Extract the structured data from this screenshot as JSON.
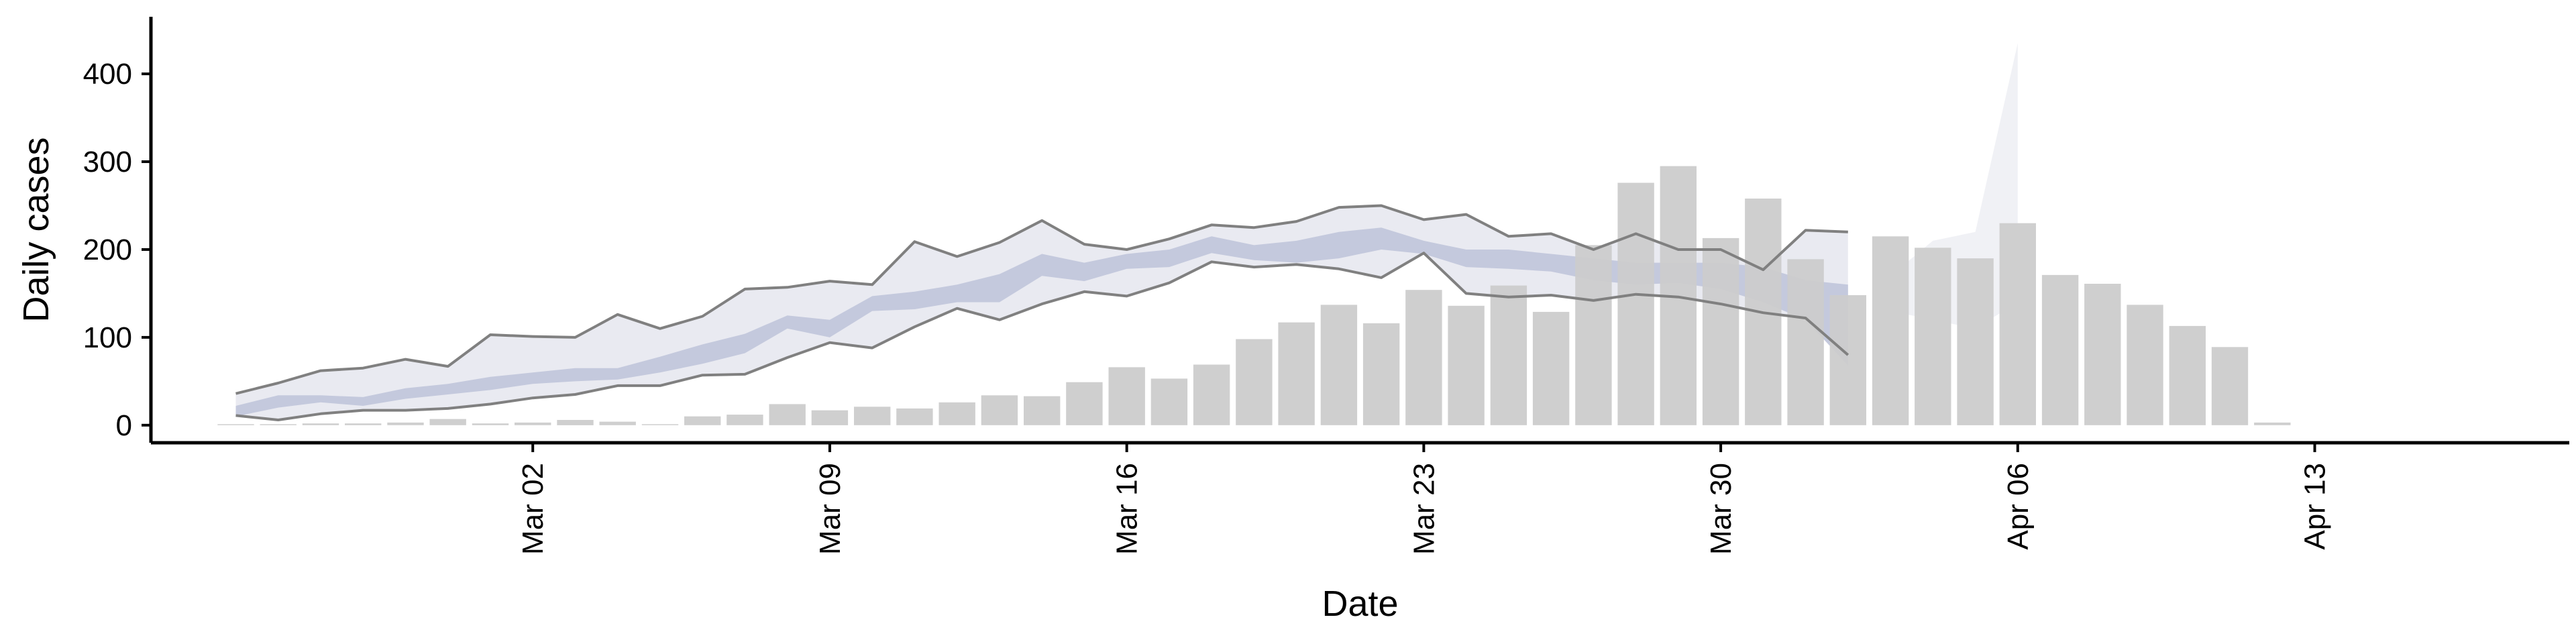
{
  "chart_data": {
    "type": "bar",
    "title": "",
    "xlabel": "Date",
    "ylabel": "Daily cases",
    "ylim": [
      -20,
      465
    ],
    "yticks": [
      0,
      100,
      200,
      300,
      400
    ],
    "xticks": [
      {
        "label": "Mar 02",
        "date": "2020-03-02"
      },
      {
        "label": "Mar 09",
        "date": "2020-03-09"
      },
      {
        "label": "Mar 16",
        "date": "2020-03-16"
      },
      {
        "label": "Mar 23",
        "date": "2020-03-23"
      },
      {
        "label": "Mar 30",
        "date": "2020-03-30"
      },
      {
        "label": "Apr 06",
        "date": "2020-04-06"
      },
      {
        "label": "Apr 13",
        "date": "2020-04-13"
      }
    ],
    "xlim": [
      "2020-02-22",
      "2020-04-19"
    ],
    "grid": false,
    "legend": "none",
    "colors": {
      "bars": "#cccccc",
      "outer_band": "#e9eaf1",
      "inner_band": "#c4c9dd",
      "bound_lines": "#808080",
      "forecast_band": "#eef0f4",
      "axis": "#000000"
    },
    "bars": {
      "start_date": "2020-02-24",
      "values": [
        1,
        0,
        2,
        2,
        3,
        7,
        2,
        3,
        6,
        4,
        1,
        10,
        12,
        24,
        17,
        21,
        19,
        26,
        34,
        33,
        49,
        66,
        53,
        69,
        98,
        117,
        137,
        116,
        154,
        136,
        159,
        129,
        205,
        276,
        295,
        213,
        258,
        189,
        148,
        215,
        202,
        190,
        230,
        171,
        161,
        137,
        113,
        89,
        3
      ]
    },
    "estimate": {
      "start_date": "2020-02-24",
      "upper": [
        36,
        48,
        62,
        65,
        75,
        67,
        103,
        101,
        100,
        126,
        110,
        124,
        155,
        157,
        164,
        160,
        209,
        192,
        208,
        233,
        206,
        200,
        212,
        228,
        225,
        232,
        248,
        250,
        234,
        240,
        215,
        218,
        200,
        218,
        200,
        200,
        177,
        222,
        220
      ],
      "lower": [
        11,
        6,
        13,
        17,
        17,
        19,
        24,
        31,
        35,
        45,
        45,
        57,
        58,
        77,
        94,
        88,
        112,
        133,
        120,
        138,
        152,
        147,
        162,
        186,
        180,
        183,
        178,
        168,
        196,
        150,
        146,
        148,
        142,
        149,
        146,
        138,
        128,
        122,
        80
      ],
      "inner_upper": [
        22,
        34,
        34,
        32,
        42,
        47,
        55,
        60,
        65,
        65,
        78,
        92,
        104,
        125,
        120,
        147,
        152,
        160,
        172,
        195,
        185,
        195,
        200,
        215,
        205,
        210,
        220,
        225,
        210,
        200,
        200,
        195,
        190,
        185,
        185,
        185,
        180,
        165,
        160
      ],
      "inner_lower": [
        10,
        20,
        26,
        22,
        30,
        35,
        40,
        47,
        50,
        52,
        60,
        70,
        82,
        110,
        100,
        130,
        132,
        140,
        140,
        170,
        164,
        178,
        180,
        196,
        188,
        185,
        190,
        200,
        195,
        180,
        178,
        175,
        165,
        160,
        162,
        155,
        140,
        120,
        68
      ]
    },
    "forecast": {
      "dates": [
        "2020-04-03",
        "2020-04-04",
        "2020-04-05",
        "2020-04-06",
        "2020-04-06"
      ],
      "upper": [
        170,
        210,
        220,
        435,
        435
      ],
      "lower": [
        130,
        120,
        110,
        140,
        60
      ]
    }
  }
}
